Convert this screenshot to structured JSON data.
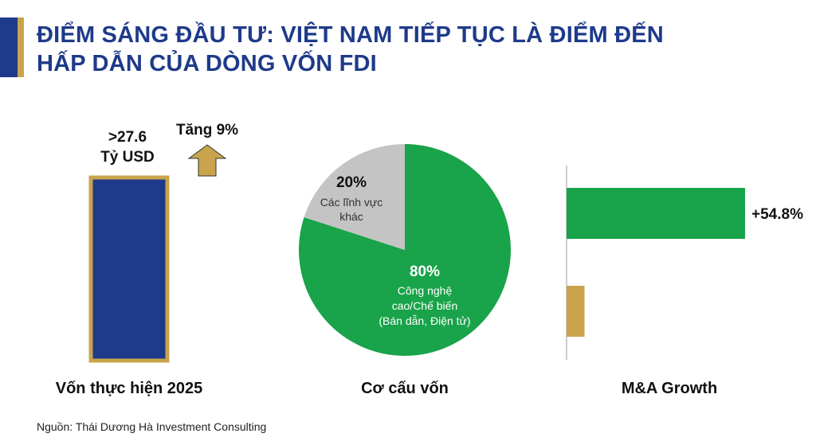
{
  "header": {
    "title_line1": "ĐIỂM SÁNG ĐẦU TƯ: VIỆT NAM TIẾP TỤC LÀ ĐIỂM ĐẾN",
    "title_line2": "HẤP DẪN CỦA DÒNG VỐN FDI"
  },
  "colors": {
    "navy": "#1e3a8a",
    "gold": "#c9a44c",
    "green": "#19a34a",
    "gray": "#c4c4c4"
  },
  "chart_data": [
    {
      "type": "bar",
      "xlabel": "Vốn thực hiện 2025",
      "value_line1": ">27.6",
      "value_line2": "Tỷ USD",
      "annotation": "Tăng 9%",
      "values": [
        27.6
      ]
    },
    {
      "type": "pie",
      "xlabel": "Cơ cấu vốn",
      "slices": [
        {
          "value": 80,
          "pct_label": "80%",
          "label_lines": [
            "Công nghệ",
            "cao/Chế biến",
            "(Bán dẫn, Điện tử)"
          ]
        },
        {
          "value": 20,
          "pct_label": "20%",
          "label_lines": [
            "Các lĩnh vực",
            "khác"
          ]
        }
      ]
    },
    {
      "type": "bar",
      "orientation": "horizontal",
      "xlabel": "M&A Growth",
      "bars": [
        {
          "value": 54.8,
          "label": "+54.8%"
        },
        {
          "value": 5.5,
          "label": ""
        }
      ]
    }
  ],
  "footer": {
    "source": "Nguồn: Thái Dương Hà Investment Consulting"
  }
}
